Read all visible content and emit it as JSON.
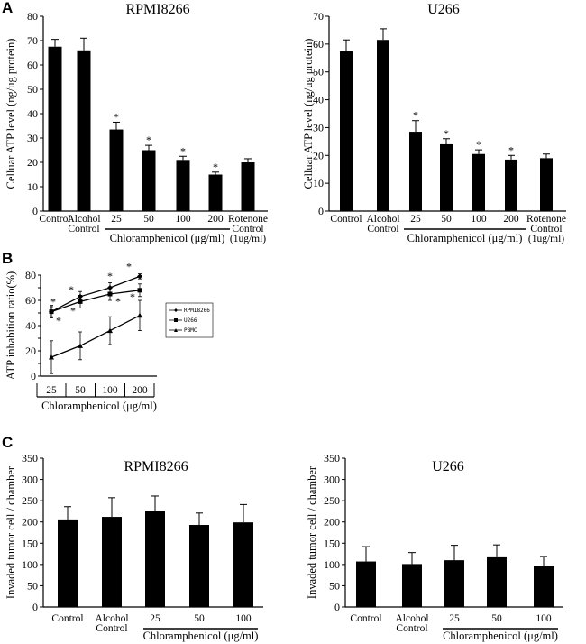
{
  "colors": {
    "ink": "#000000",
    "background": "#ffffff"
  },
  "panel_labels": {
    "a": "A",
    "b": "B",
    "c": "C"
  },
  "chart_data": [
    {
      "id": "A1",
      "panel": "A",
      "type": "bar",
      "title": "RPMI8266",
      "ylabel": "Celluar ATP level (ng/ug protein)",
      "ylim": [
        0,
        80
      ],
      "yticks": [
        0,
        10,
        20,
        30,
        40,
        50,
        60,
        70,
        80
      ],
      "categories": [
        {
          "label": "Control",
          "label2": ""
        },
        {
          "label": "Alcohol",
          "label2": "Control"
        },
        {
          "label": "25",
          "label2": ""
        },
        {
          "label": "50",
          "label2": ""
        },
        {
          "label": "100",
          "label2": ""
        },
        {
          "label": "200",
          "label2": ""
        },
        {
          "label": "Rotenone",
          "label2": "Control",
          "label3": "(1ug/ml)"
        }
      ],
      "values": [
        67.5,
        66,
        33.5,
        25,
        21,
        15,
        20
      ],
      "errors": [
        3,
        5,
        3,
        2,
        1.5,
        1,
        1.5
      ],
      "significance": [
        "",
        "",
        "*",
        "*",
        "*",
        "*",
        ""
      ],
      "group_label": "Chloramphenicol (μg/ml)",
      "group_range": [
        2,
        5
      ]
    },
    {
      "id": "A2",
      "panel": "A",
      "type": "bar",
      "title": "U266",
      "ylabel": "Celluar ATP level (ng/ug protein)",
      "ylim": [
        0,
        70
      ],
      "yticks": [
        0,
        10,
        20,
        30,
        40,
        50,
        60,
        70
      ],
      "categories": [
        {
          "label": "Control",
          "label2": ""
        },
        {
          "label": "Alcohol",
          "label2": "Control"
        },
        {
          "label": "25",
          "label2": ""
        },
        {
          "label": "50",
          "label2": ""
        },
        {
          "label": "100",
          "label2": ""
        },
        {
          "label": "200",
          "label2": ""
        },
        {
          "label": "Rotenone",
          "label2": "Control",
          "label3": "(1ug/ml)"
        }
      ],
      "values": [
        57.5,
        61.5,
        28.5,
        24,
        20.5,
        18.5,
        19
      ],
      "errors": [
        4,
        4,
        4,
        2,
        1.5,
        1.5,
        1.5
      ],
      "significance": [
        "",
        "",
        "*",
        "*",
        "*",
        "*",
        ""
      ],
      "group_label": "Chloramphenicol (μg/ml)",
      "group_range": [
        2,
        5
      ]
    },
    {
      "id": "B",
      "panel": "B",
      "type": "line",
      "ylabel": "ATP inhabition ratio(%)",
      "xlabel": "Chloramphenicol (μg/ml)",
      "categories": [
        "25",
        "50",
        "100",
        "200"
      ],
      "ylim": [
        0,
        80
      ],
      "yticks": [
        0,
        10,
        20,
        30,
        40,
        50,
        60,
        70,
        80
      ],
      "legend_position": "right",
      "series": [
        {
          "name": "RPMI8266",
          "marker": "diamond",
          "values": [
            51,
            63,
            70,
            79
          ],
          "errors": [
            5,
            4,
            4,
            2
          ],
          "significance": [
            "*",
            "*",
            "*",
            "*"
          ]
        },
        {
          "name": "U266",
          "marker": "square",
          "values": [
            51,
            59,
            65,
            68
          ],
          "errors": [
            4,
            5,
            5,
            5
          ],
          "significance": [
            "*",
            "*",
            "*",
            "*"
          ]
        },
        {
          "name": "PBMC",
          "marker": "triangle",
          "values": [
            15,
            24,
            36,
            48
          ],
          "errors": [
            13,
            11,
            11,
            12
          ],
          "significance": [
            "",
            "",
            "",
            ""
          ]
        }
      ]
    },
    {
      "id": "C1",
      "panel": "C",
      "type": "bar",
      "title": "RPMI8266",
      "ylabel": "Invaded tumor cell / chamber",
      "ylim": [
        0,
        350
      ],
      "yticks": [
        0,
        50,
        100,
        150,
        200,
        250,
        300,
        350
      ],
      "categories": [
        {
          "label": "Control",
          "label2": ""
        },
        {
          "label": "Alcohol",
          "label2": "Control"
        },
        {
          "label": "25",
          "label2": ""
        },
        {
          "label": "50",
          "label2": ""
        },
        {
          "label": "100",
          "label2": ""
        }
      ],
      "values": [
        206,
        212,
        226,
        193,
        199
      ],
      "errors": [
        30,
        45,
        35,
        28,
        42
      ],
      "group_label": "Chloramphenicol (μg/ml)",
      "group_range": [
        2,
        4
      ]
    },
    {
      "id": "C2",
      "panel": "C",
      "type": "bar",
      "title": "U266",
      "ylabel": "Invaded tumor cell / chamber",
      "ylim": [
        0,
        350
      ],
      "yticks": [
        0,
        50,
        100,
        150,
        200,
        250,
        300,
        350
      ],
      "categories": [
        {
          "label": "Control",
          "label2": ""
        },
        {
          "label": "Alcohol",
          "label2": "Control"
        },
        {
          "label": "25",
          "label2": ""
        },
        {
          "label": "50",
          "label2": ""
        },
        {
          "label": "100",
          "label2": ""
        }
      ],
      "values": [
        107,
        101,
        110,
        119,
        97
      ],
      "errors": [
        35,
        27,
        35,
        27,
        22
      ],
      "group_label": "Chloramphenicol (μg/ml)",
      "group_range": [
        2,
        4
      ]
    }
  ]
}
